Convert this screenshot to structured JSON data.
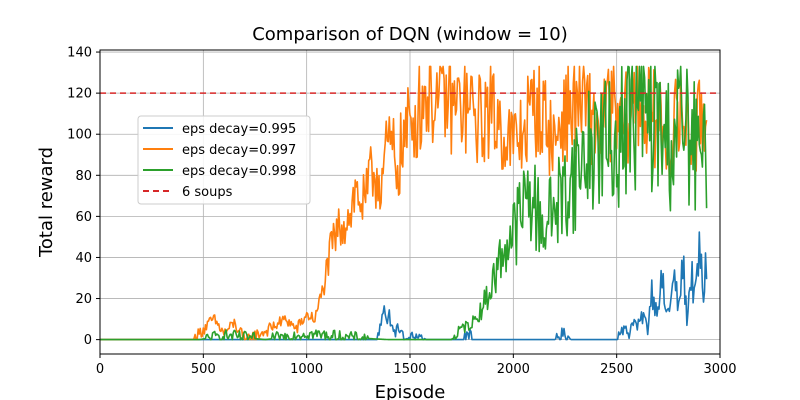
{
  "chart_data": {
    "type": "line",
    "title": "Comparison of DQN (window = 10)",
    "xlabel": "Episode",
    "ylabel": "Total reward",
    "xlim": [
      0,
      3000
    ],
    "ylim": [
      -7,
      141
    ],
    "xticks": [
      0,
      500,
      1000,
      1500,
      2000,
      2500,
      3000
    ],
    "yticks": [
      0,
      20,
      40,
      60,
      80,
      100,
      120,
      140
    ],
    "grid": true,
    "legend_position": "center-left",
    "reference_line": {
      "name": "6 soups",
      "y": 120,
      "color": "#d62728",
      "style": "dashed"
    },
    "series": [
      {
        "name": "eps decay=0.995",
        "color": "#1f77b4",
        "points": [
          [
            0,
            0
          ],
          [
            1340,
            0
          ],
          [
            1365,
            10
          ],
          [
            1375,
            20
          ],
          [
            1390,
            8
          ],
          [
            1400,
            12
          ],
          [
            1420,
            3
          ],
          [
            1450,
            6
          ],
          [
            1470,
            0
          ],
          [
            1540,
            2
          ],
          [
            1580,
            0
          ],
          [
            1760,
            0
          ],
          [
            1780,
            4
          ],
          [
            1800,
            0
          ],
          [
            2200,
            0
          ],
          [
            2240,
            3
          ],
          [
            2280,
            0
          ],
          [
            2500,
            0
          ],
          [
            2520,
            6
          ],
          [
            2560,
            3
          ],
          [
            2580,
            10
          ],
          [
            2600,
            6
          ],
          [
            2630,
            12
          ],
          [
            2650,
            5
          ],
          [
            2670,
            25
          ],
          [
            2690,
            15
          ],
          [
            2720,
            28
          ],
          [
            2740,
            12
          ],
          [
            2760,
            18
          ],
          [
            2780,
            30
          ],
          [
            2800,
            14
          ],
          [
            2820,
            38
          ],
          [
            2840,
            10
          ],
          [
            2860,
            32
          ],
          [
            2880,
            20
          ],
          [
            2900,
            43
          ],
          [
            2920,
            22
          ],
          [
            2935,
            40
          ]
        ]
      },
      {
        "name": "eps decay=0.997",
        "color": "#ff7f0e",
        "points": [
          [
            0,
            0
          ],
          [
            450,
            0
          ],
          [
            500,
            5
          ],
          [
            550,
            10
          ],
          [
            600,
            3
          ],
          [
            650,
            8
          ],
          [
            700,
            0
          ],
          [
            800,
            4
          ],
          [
            900,
            10
          ],
          [
            950,
            5
          ],
          [
            1000,
            12
          ],
          [
            1040,
            10
          ],
          [
            1080,
            25
          ],
          [
            1120,
            45
          ],
          [
            1160,
            55
          ],
          [
            1200,
            60
          ],
          [
            1240,
            72
          ],
          [
            1280,
            65
          ],
          [
            1320,
            82
          ],
          [
            1360,
            78
          ],
          [
            1400,
            95
          ],
          [
            1440,
            85
          ],
          [
            1480,
            100
          ],
          [
            1520,
            108
          ],
          [
            1560,
            118
          ],
          [
            1600,
            122
          ],
          [
            1640,
            115
          ],
          [
            1680,
            118
          ],
          [
            1720,
            112
          ],
          [
            1760,
            115
          ],
          [
            1800,
            110
          ],
          [
            1840,
            106
          ],
          [
            1880,
            112
          ],
          [
            1920,
            108
          ],
          [
            1960,
            100
          ],
          [
            2000,
            95
          ],
          [
            2040,
            100
          ],
          [
            2080,
            110
          ],
          [
            2120,
            115
          ],
          [
            2160,
            105
          ],
          [
            2200,
            95
          ],
          [
            2240,
            110
          ],
          [
            2280,
            112
          ],
          [
            2320,
            118
          ],
          [
            2360,
            110
          ],
          [
            2400,
            105
          ],
          [
            2440,
            108
          ],
          [
            2480,
            112
          ],
          [
            2520,
            102
          ],
          [
            2560,
            110
          ],
          [
            2600,
            118
          ],
          [
            2640,
            110
          ],
          [
            2680,
            108
          ],
          [
            2720,
            102
          ],
          [
            2760,
            95
          ],
          [
            2800,
            110
          ],
          [
            2840,
            105
          ],
          [
            2880,
            98
          ],
          [
            2920,
            110
          ],
          [
            2935,
            108
          ]
        ]
      },
      {
        "name": "eps decay=0.998",
        "color": "#2ca02c",
        "points": [
          [
            0,
            0
          ],
          [
            480,
            0
          ],
          [
            600,
            2
          ],
          [
            800,
            0
          ],
          [
            1000,
            3
          ],
          [
            1200,
            1
          ],
          [
            1400,
            0
          ],
          [
            1700,
            0
          ],
          [
            1760,
            6
          ],
          [
            1800,
            8
          ],
          [
            1840,
            14
          ],
          [
            1880,
            22
          ],
          [
            1920,
            34
          ],
          [
            1960,
            46
          ],
          [
            2000,
            52
          ],
          [
            2040,
            62
          ],
          [
            2080,
            72
          ],
          [
            2120,
            60
          ],
          [
            2160,
            56
          ],
          [
            2200,
            66
          ],
          [
            2240,
            70
          ],
          [
            2280,
            78
          ],
          [
            2320,
            84
          ],
          [
            2360,
            92
          ],
          [
            2400,
            96
          ],
          [
            2440,
            98
          ],
          [
            2480,
            90
          ],
          [
            2520,
            102
          ],
          [
            2560,
            108
          ],
          [
            2600,
            112
          ],
          [
            2640,
            110
          ],
          [
            2680,
            106
          ],
          [
            2720,
            100
          ],
          [
            2760,
            96
          ],
          [
            2800,
            106
          ],
          [
            2840,
            100
          ],
          [
            2880,
            92
          ],
          [
            2920,
            86
          ],
          [
            2935,
            84
          ]
        ]
      }
    ]
  }
}
